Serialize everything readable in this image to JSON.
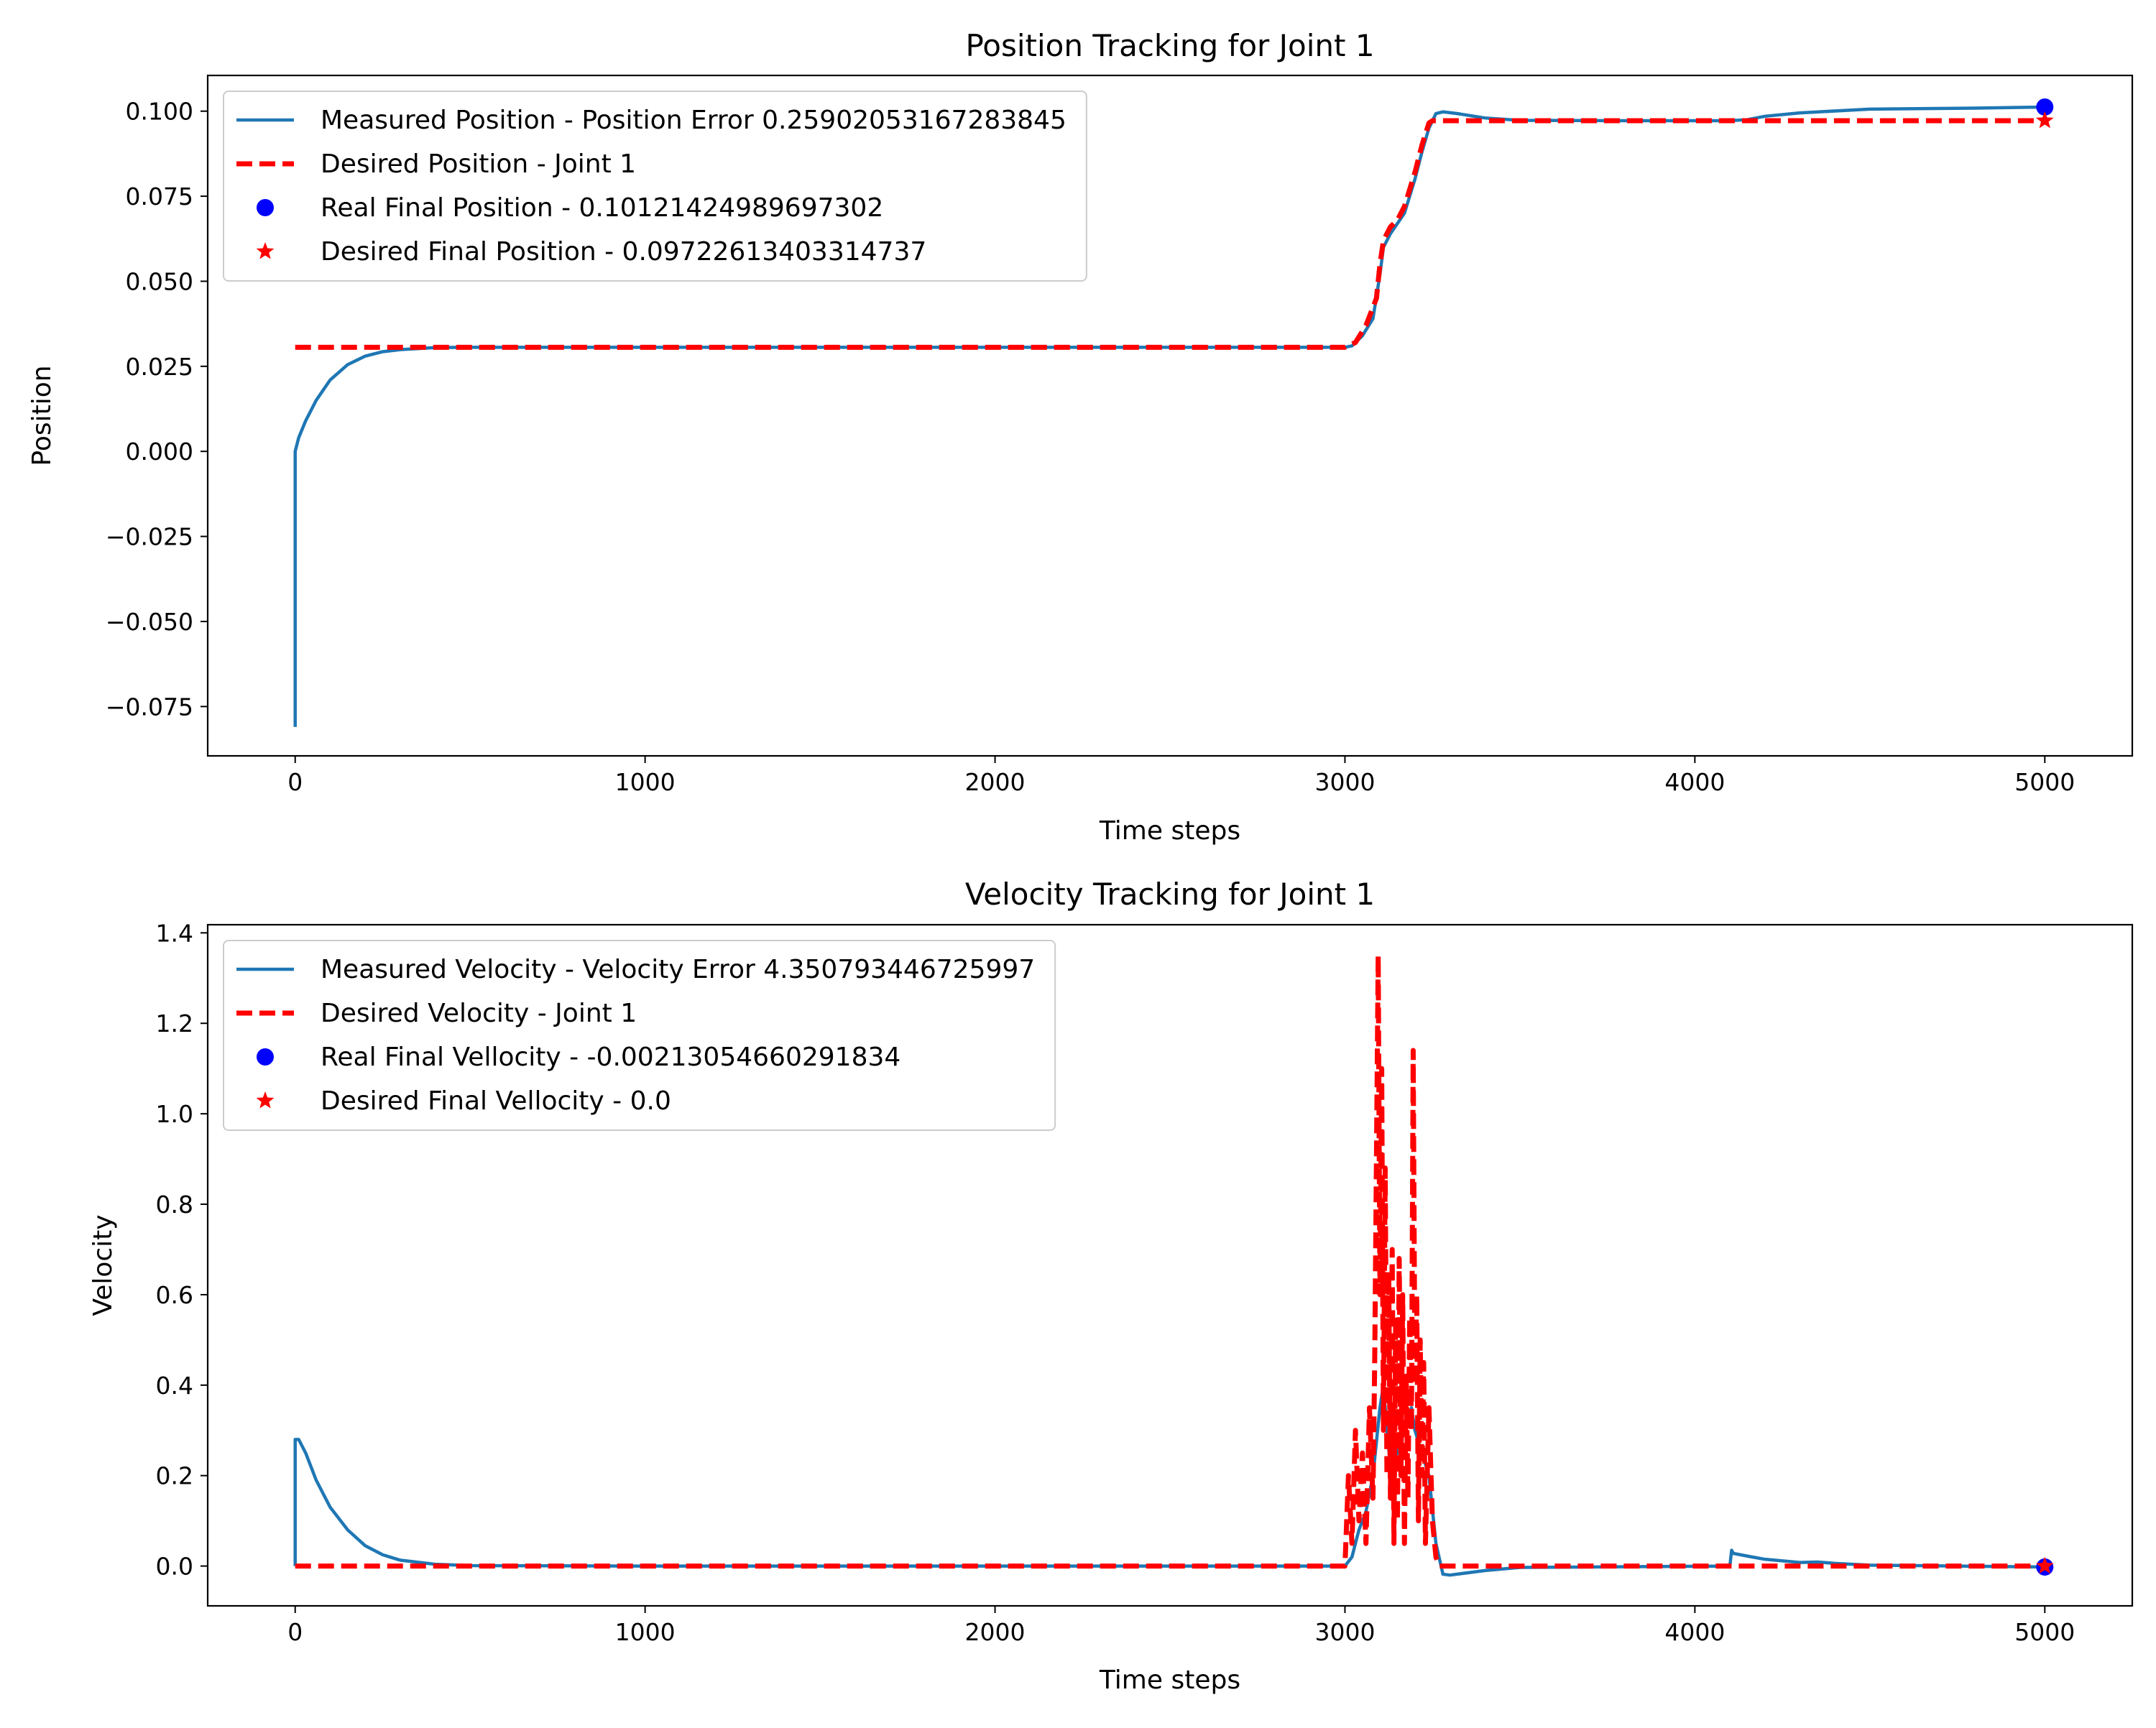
{
  "colors": {
    "measured": "#1f77b4",
    "desired": "#ff0000",
    "real_marker": "#0000ff",
    "desired_marker": "#ff0000",
    "axes": "#000000",
    "legend_border": "#cccccc"
  },
  "chart_data": [
    {
      "type": "line",
      "title": "Position Tracking for Joint 1",
      "xlabel": "Time steps",
      "ylabel": "Position",
      "xlim": [
        -250,
        5250
      ],
      "ylim": [
        -0.0895,
        0.1105
      ],
      "xticks": [
        0,
        1000,
        2000,
        3000,
        4000,
        5000
      ],
      "xtick_labels": [
        "0",
        "1000",
        "2000",
        "3000",
        "4000",
        "5000"
      ],
      "yticks": [
        -0.075,
        -0.05,
        -0.025,
        0.0,
        0.025,
        0.05,
        0.075,
        0.1
      ],
      "ytick_labels": [
        "−0.075",
        "−0.050",
        "−0.025",
        "0.000",
        "0.025",
        "0.050",
        "0.075",
        "0.100"
      ],
      "grid": false,
      "legend_placement": "upper-left",
      "series": [
        {
          "name": "Measured Position - Position Error 0.25902053167283845",
          "style": "solid",
          "color_key": "measured",
          "x": [
            0,
            0,
            10,
            30,
            60,
            100,
            150,
            200,
            250,
            300,
            400,
            500,
            1000,
            2000,
            2900,
            3000,
            3020,
            3050,
            3080,
            3100,
            3110,
            3130,
            3150,
            3170,
            3200,
            3220,
            3240,
            3260,
            3280,
            3320,
            3400,
            3500,
            3800,
            4100,
            4150,
            4200,
            4300,
            4500,
            4800,
            5000
          ],
          "y": [
            -0.081,
            0.0,
            0.004,
            0.009,
            0.015,
            0.021,
            0.0255,
            0.028,
            0.0293,
            0.0299,
            0.0305,
            0.0306,
            0.0306,
            0.0306,
            0.0306,
            0.0306,
            0.031,
            0.034,
            0.039,
            0.052,
            0.06,
            0.064,
            0.067,
            0.07,
            0.08,
            0.088,
            0.095,
            0.0993,
            0.0998,
            0.0993,
            0.098,
            0.0973,
            0.0972,
            0.0972,
            0.0975,
            0.0985,
            0.0995,
            0.1006,
            0.1009,
            0.1012
          ]
        },
        {
          "name": "Desired Position - Joint 1",
          "style": "dashed",
          "color_key": "desired",
          "x": [
            0,
            1000,
            2000,
            3000,
            3030,
            3060,
            3090,
            3100,
            3110,
            3130,
            3150,
            3170,
            3200,
            3220,
            3240,
            3250,
            4000,
            5000
          ],
          "y": [
            0.0306,
            0.0306,
            0.0306,
            0.0306,
            0.032,
            0.037,
            0.045,
            0.055,
            0.062,
            0.066,
            0.068,
            0.072,
            0.082,
            0.09,
            0.0965,
            0.0972,
            0.0972,
            0.0972
          ]
        }
      ],
      "points": [
        {
          "name": "Real Final Position - 0.10121424989697302",
          "x": 5000,
          "y": 0.10121424989697302,
          "marker": "circle",
          "color_key": "real_marker"
        },
        {
          "name": "Desired Final Position - 0.09722613403314737",
          "x": 5000,
          "y": 0.09722613403314737,
          "marker": "star",
          "color_key": "desired_marker"
        }
      ]
    },
    {
      "type": "line",
      "title": "Velocity Tracking for Joint 1",
      "xlabel": "Time steps",
      "ylabel": "Velocity",
      "xlim": [
        -250,
        5250
      ],
      "ylim": [
        -0.088,
        1.418
      ],
      "xticks": [
        0,
        1000,
        2000,
        3000,
        4000,
        5000
      ],
      "xtick_labels": [
        "0",
        "1000",
        "2000",
        "3000",
        "4000",
        "5000"
      ],
      "yticks": [
        0.0,
        0.2,
        0.4,
        0.6,
        0.8,
        1.0,
        1.2,
        1.4
      ],
      "ytick_labels": [
        "0.0",
        "0.2",
        "0.4",
        "0.6",
        "0.8",
        "1.0",
        "1.2",
        "1.4"
      ],
      "grid": false,
      "legend_placement": "upper-left",
      "series": [
        {
          "name": "Measured Velocity - Velocity Error 4.350793446725997",
          "style": "solid",
          "color_key": "measured",
          "x": [
            0,
            0,
            10,
            30,
            60,
            100,
            150,
            200,
            250,
            300,
            400,
            500,
            1000,
            2000,
            3000,
            3020,
            3040,
            3060,
            3080,
            3100,
            3110,
            3120,
            3130,
            3150,
            3170,
            3190,
            3200,
            3220,
            3240,
            3260,
            3280,
            3300,
            3400,
            3500,
            4100,
            4105,
            4110,
            4150,
            4200,
            4300,
            4350,
            4400,
            4500,
            5000
          ],
          "y": [
            0.0,
            0.28,
            0.28,
            0.25,
            0.19,
            0.13,
            0.08,
            0.045,
            0.025,
            0.013,
            0.004,
            0.001,
            0.0,
            0.0,
            0.0,
            0.02,
            0.08,
            0.12,
            0.2,
            0.35,
            0.4,
            0.3,
            0.22,
            0.25,
            0.3,
            0.35,
            0.3,
            0.25,
            0.2,
            0.05,
            -0.018,
            -0.02,
            -0.01,
            -0.003,
            0.0,
            0.035,
            0.028,
            0.022,
            0.015,
            0.008,
            0.009,
            0.006,
            0.002,
            -0.002
          ]
        },
        {
          "name": "Desired Velocity - Joint 1",
          "style": "dashed",
          "color_key": "desired",
          "x": [
            0,
            500,
            1000,
            2000,
            3000,
            3010,
            3020,
            3030,
            3040,
            3050,
            3060,
            3070,
            3080,
            3085,
            3090,
            3095,
            3100,
            3105,
            3110,
            3115,
            3120,
            3125,
            3130,
            3135,
            3140,
            3145,
            3150,
            3155,
            3160,
            3165,
            3170,
            3175,
            3180,
            3185,
            3190,
            3195,
            3200,
            3205,
            3210,
            3215,
            3220,
            3225,
            3230,
            3240,
            3250,
            3260,
            3270,
            4000,
            5000
          ],
          "y": [
            0.0,
            0.0,
            0.0,
            0.0,
            0.0,
            0.2,
            0.05,
            0.3,
            0.1,
            0.25,
            0.05,
            0.35,
            0.15,
            0.45,
            0.9,
            1.35,
            0.6,
            1.1,
            0.3,
            0.88,
            0.2,
            0.65,
            0.15,
            0.7,
            0.05,
            0.55,
            0.1,
            0.68,
            0.2,
            0.6,
            0.05,
            0.42,
            0.15,
            0.55,
            0.3,
            1.14,
            0.4,
            0.6,
            0.1,
            0.5,
            0.2,
            0.45,
            0.05,
            0.35,
            0.1,
            0.02,
            0.0,
            0.0,
            0.0
          ]
        }
      ],
      "points": [
        {
          "name": "Real Final Vellocity - -0.00213054660291834",
          "x": 5000,
          "y": -0.00213054660291834,
          "marker": "circle",
          "color_key": "real_marker"
        },
        {
          "name": "Desired Final Vellocity - 0.0",
          "x": 5000,
          "y": 0.0,
          "marker": "star",
          "color_key": "desired_marker"
        }
      ]
    }
  ]
}
